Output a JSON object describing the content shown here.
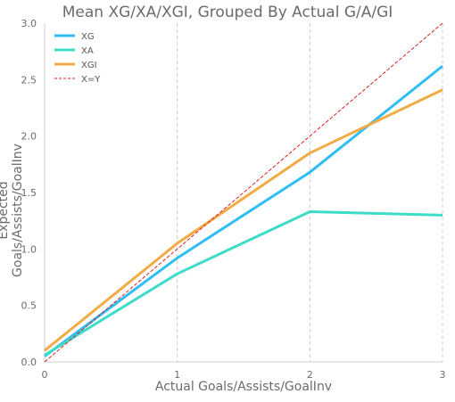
{
  "chart_data": {
    "type": "line",
    "title": "Mean XG/XA/XGI, Grouped By Actual G/A/GI",
    "xlabel": "Actual Goals/Assists/GoalInv",
    "ylabel": "Expected Goals/Assists/GoalInv",
    "x": [
      0,
      1,
      2,
      3
    ],
    "xlim": [
      0,
      3
    ],
    "ylim": [
      0,
      3.0
    ],
    "xticks": [
      "0",
      "1",
      "2",
      "3"
    ],
    "yticks": [
      "0.0",
      "0.5",
      "1.0",
      "1.5",
      "2.0",
      "2.5",
      "3.0"
    ],
    "grid": "vertical dashed",
    "legend_position": "top-left",
    "series": [
      {
        "name": "XG",
        "color": "#2ebdf5",
        "style": "solid",
        "values": [
          0.05,
          0.92,
          1.68,
          2.62
        ]
      },
      {
        "name": "XA",
        "color": "#3ddcc8",
        "style": "solid",
        "values": [
          0.06,
          0.78,
          1.33,
          1.3
        ]
      },
      {
        "name": "XGI",
        "color": "#f2ac45",
        "style": "solid",
        "values": [
          0.1,
          1.05,
          1.85,
          2.41
        ]
      },
      {
        "name": "X=Y",
        "color": "#e02020",
        "style": "dashed",
        "values": [
          0,
          1,
          2,
          3
        ]
      }
    ]
  }
}
